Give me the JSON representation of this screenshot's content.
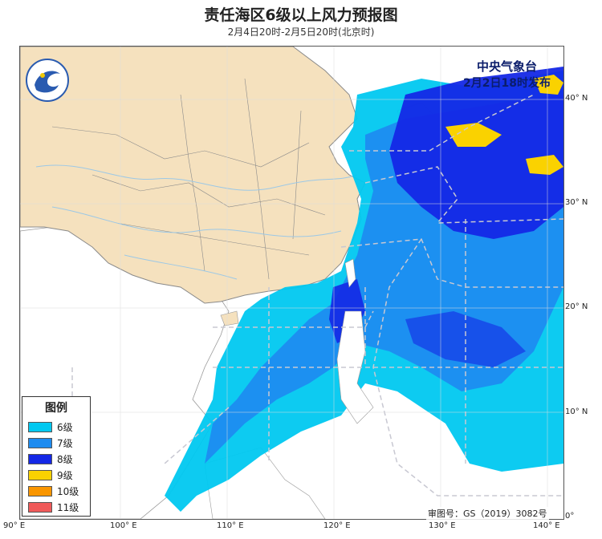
{
  "title": "责任海区6级以上风力预报图",
  "subtitle": "2月4日20时-2月5日20时(北京时)",
  "issuer": {
    "org": "中央气象台",
    "issued": "2月2日18时发布"
  },
  "approval": "审图号：GS（2019）3082号",
  "legend": {
    "title": "图例",
    "items": [
      {
        "label": "6级",
        "color": "#00c8f0"
      },
      {
        "label": "7级",
        "color": "#1e8cf0"
      },
      {
        "label": "8级",
        "color": "#1428e6"
      },
      {
        "label": "9级",
        "color": "#fad200"
      },
      {
        "label": "10级",
        "color": "#fa9600"
      },
      {
        "label": "11级",
        "color": "#f05a5a"
      }
    ]
  },
  "axes": {
    "lat_labels": [
      "40° N",
      "30° N",
      "20° N",
      "10° N",
      "0°"
    ],
    "lon_labels": [
      "90° E",
      "100° E",
      "110° E",
      "120° E",
      "130° E",
      "140° E"
    ]
  },
  "colors": {
    "land_china": "#f5e1be",
    "land_other": "#ffffff",
    "sea": "#ffffff",
    "river": "#9cc8e6",
    "border": "#8a8a8a",
    "zone_line": "#c8c8d2"
  },
  "logo_icon": "cma-logo-icon"
}
